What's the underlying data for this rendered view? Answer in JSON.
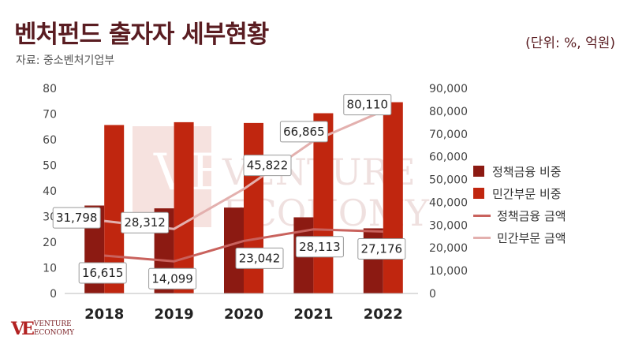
{
  "header": {
    "title": "벤처펀드 출자자 세부현황",
    "source": "자료: 중소벤처기업부",
    "unit": "(단위: %, 억원)"
  },
  "logo": {
    "mark": "VE",
    "line1": "VENTURE",
    "line2": "ECONOMY"
  },
  "colors": {
    "policy_bar": "#8c1a12",
    "private_bar": "#c0260f",
    "policy_line": "#c9625d",
    "private_line": "#e3b0ae"
  },
  "chart_data": {
    "type": "bar",
    "categories": [
      "2018",
      "2019",
      "2020",
      "2021",
      "2022"
    ],
    "y_left": {
      "ylim": [
        0,
        80
      ],
      "ticks": [
        0,
        10,
        20,
        30,
        40,
        50,
        60,
        70,
        80
      ]
    },
    "y_right": {
      "ylim": [
        0,
        90000
      ],
      "ticks": [
        "0",
        "10,000",
        "20,000",
        "30,000",
        "40,000",
        "50,000",
        "60,000",
        "70,000",
        "80,000",
        "90,000"
      ]
    },
    "series": [
      {
        "name": "정책금융 비중",
        "kind": "bar",
        "axis": "left",
        "values": [
          34.3,
          33.2,
          33.5,
          29.7,
          25.4
        ]
      },
      {
        "name": "민간부문 비중",
        "kind": "bar",
        "axis": "left",
        "values": [
          65.7,
          66.8,
          66.5,
          70.3,
          74.6
        ]
      },
      {
        "name": "정책금융 금액",
        "kind": "line",
        "axis": "right",
        "values": [
          16615,
          14099,
          23042,
          28113,
          27176
        ],
        "labels": [
          "16,615",
          "14,099",
          "23,042",
          "28,113",
          "27,176"
        ]
      },
      {
        "name": "민간부문 금액",
        "kind": "line",
        "axis": "right",
        "values": [
          31798,
          28312,
          45822,
          66865,
          80110
        ],
        "labels": [
          "31,798",
          "28,312",
          "45,822",
          "66,865",
          "80,110"
        ]
      }
    ],
    "legend_position": "right",
    "grid": false
  }
}
